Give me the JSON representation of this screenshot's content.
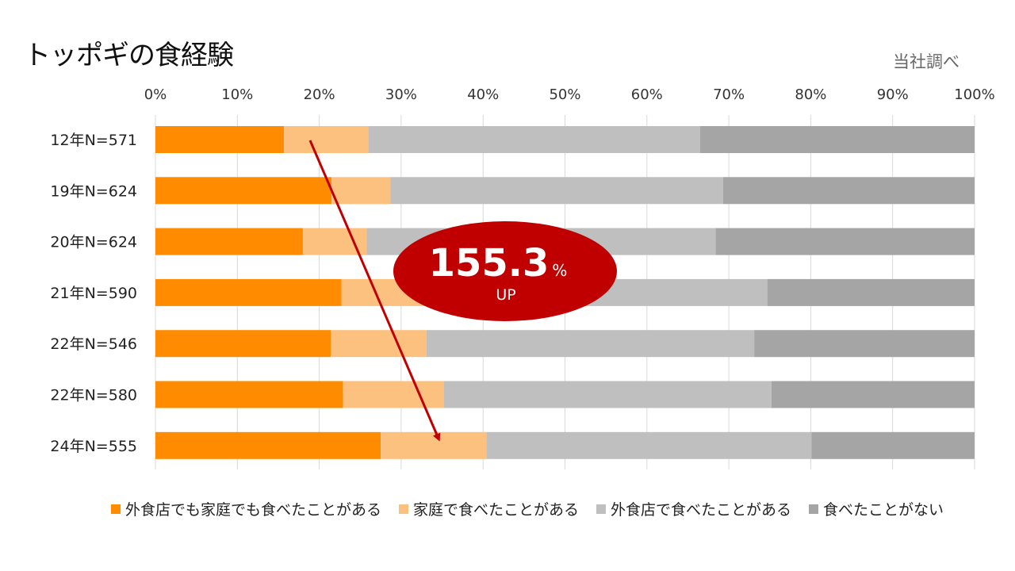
{
  "page": {
    "title": "トッポギの食経験",
    "source_note": "当社調べ"
  },
  "callout": {
    "value": "155.3",
    "unit": "%",
    "label": "UP",
    "color": "#c00000"
  },
  "colors": {
    "series": [
      "#ff8c00",
      "#fcc17f",
      "#bfbfbf",
      "#a5a5a5"
    ],
    "arrow": "#c00000",
    "grid": "#d9d9d9"
  },
  "chart_data": {
    "type": "bar",
    "orientation": "horizontal",
    "stacked": "percent",
    "categories": [
      "12年N=571",
      "19年N=624",
      "20年N=624",
      "21年N=590",
      "22年N=546",
      "22年N=580",
      "24年N=555"
    ],
    "series": [
      {
        "name": "外食店でも家庭でも食べたことがある",
        "values": [
          15.7,
          21.5,
          18.0,
          22.7,
          21.4,
          22.9,
          27.5
        ]
      },
      {
        "name": "家庭で食べたことがある",
        "values": [
          10.3,
          7.2,
          7.8,
          11.3,
          11.7,
          12.3,
          12.9
        ]
      },
      {
        "name": "外食店で食べたことがある",
        "values": [
          40.5,
          40.6,
          42.6,
          40.7,
          40.0,
          40.0,
          39.7
        ]
      },
      {
        "name": "食べたことがない",
        "values": [
          33.5,
          30.7,
          31.6,
          25.3,
          26.9,
          24.8,
          19.9
        ]
      }
    ],
    "xlim": [
      0,
      100
    ],
    "xticks": [
      "0%",
      "10%",
      "20%",
      "30%",
      "40%",
      "50%",
      "60%",
      "70%",
      "80%",
      "90%",
      "100%"
    ],
    "grid": true,
    "legend": "bottom",
    "annotations": [
      "155.3% UP"
    ]
  }
}
